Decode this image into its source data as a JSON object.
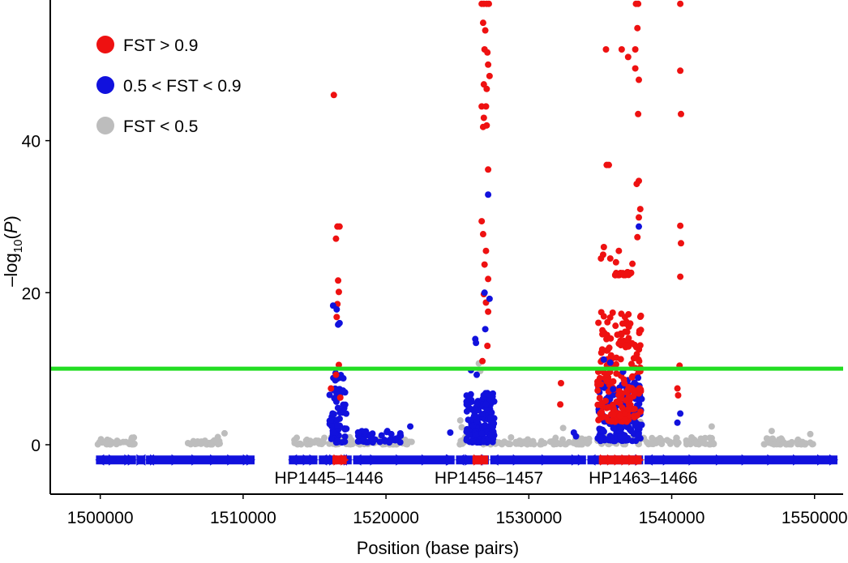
{
  "chart_data": {
    "type": "scatter",
    "title": "",
    "xlabel": "Position (base pairs)",
    "ylabel_parts": {
      "prefix": "–log",
      "sub": "10",
      "open": "(",
      "var": "P",
      "close": ")"
    },
    "xlim": [
      1496500,
      1552000
    ],
    "ylim": [
      -6.5,
      58.5
    ],
    "xticks": [
      1500000,
      1510000,
      1520000,
      1530000,
      1540000,
      1550000
    ],
    "yticks": [
      0,
      20,
      40
    ],
    "threshold": {
      "y": 10,
      "color": "#22dd22"
    },
    "legend": {
      "placement": "top-left",
      "entries": [
        {
          "label": "FST > 0.9",
          "color": "#ee1111"
        },
        {
          "label": "0.5 < FST < 0.9",
          "color": "#1111dd"
        },
        {
          "label": "FST < 0.5",
          "color": "#bdbdbd"
        }
      ]
    },
    "series": [
      {
        "name": "FST > 0.9",
        "color": "#ee1111",
        "points": [
          [
            1516350,
            46
          ],
          [
            1516500,
            27.1
          ],
          [
            1516600,
            28.7
          ],
          [
            1516750,
            28.7
          ],
          [
            1516650,
            21.6
          ],
          [
            1516700,
            20.1
          ],
          [
            1516600,
            18.5
          ],
          [
            1516550,
            16.8
          ],
          [
            1516700,
            10.5
          ],
          [
            1516500,
            9.2
          ],
          [
            1516150,
            7.4
          ],
          [
            1516800,
            6.2
          ],
          [
            1526700,
            58
          ],
          [
            1526850,
            58
          ],
          [
            1527050,
            58
          ],
          [
            1527200,
            58
          ],
          [
            1526800,
            55.5
          ],
          [
            1526950,
            54.5
          ],
          [
            1526900,
            52
          ],
          [
            1527100,
            51.6
          ],
          [
            1527150,
            50
          ],
          [
            1527250,
            48.5
          ],
          [
            1526850,
            47.4
          ],
          [
            1527050,
            46.8
          ],
          [
            1526700,
            44.5
          ],
          [
            1527000,
            44.5
          ],
          [
            1526850,
            43
          ],
          [
            1527050,
            42
          ],
          [
            1526800,
            41.8
          ],
          [
            1527150,
            36.2
          ],
          [
            1526700,
            29.4
          ],
          [
            1526800,
            27.7
          ],
          [
            1527000,
            25.5
          ],
          [
            1526900,
            23.7
          ],
          [
            1527150,
            21.8
          ],
          [
            1526850,
            19.8
          ],
          [
            1527000,
            18.7
          ],
          [
            1527150,
            17.5
          ],
          [
            1527100,
            13
          ],
          [
            1526750,
            11
          ],
          [
            1532250,
            8.1
          ],
          [
            1532200,
            5.3
          ],
          [
            1535400,
            52
          ],
          [
            1536500,
            52
          ],
          [
            1536950,
            51
          ],
          [
            1537450,
            52
          ],
          [
            1537500,
            58
          ],
          [
            1537650,
            58
          ],
          [
            1537600,
            54.8
          ],
          [
            1537450,
            49.5
          ],
          [
            1537700,
            48
          ],
          [
            1537650,
            43.5
          ],
          [
            1535450,
            36.8
          ],
          [
            1535600,
            36.8
          ],
          [
            1537700,
            34.7
          ],
          [
            1537550,
            34.3
          ],
          [
            1537800,
            31
          ],
          [
            1537700,
            29.9
          ],
          [
            1537600,
            27.3
          ],
          [
            1535250,
            26
          ],
          [
            1535200,
            25
          ],
          [
            1536300,
            25.5
          ],
          [
            1535050,
            24.5
          ],
          [
            1535700,
            24.5
          ],
          [
            1536100,
            24
          ],
          [
            1537250,
            23.8
          ],
          [
            1540600,
            58
          ],
          [
            1540600,
            49.2
          ],
          [
            1540650,
            43.5
          ],
          [
            1540600,
            28.8
          ],
          [
            1540650,
            26.5
          ],
          [
            1540600,
            22.1
          ],
          [
            1540550,
            10.4
          ],
          [
            1540400,
            7.4
          ],
          [
            1540450,
            6.5
          ]
        ]
      },
      {
        "name": "0.5 < FST < 0.9",
        "color": "#1111dd",
        "points": [
          [
            1516300,
            18.3
          ],
          [
            1516550,
            17.8
          ],
          [
            1516650,
            15.8
          ],
          [
            1516750,
            16
          ],
          [
            1527150,
            32.9
          ],
          [
            1526900,
            20
          ],
          [
            1527250,
            19.2
          ],
          [
            1526950,
            15.2
          ],
          [
            1526250,
            13.9
          ],
          [
            1526300,
            13.4
          ],
          [
            1525950,
            9.8
          ],
          [
            1526350,
            9.2
          ],
          [
            1537700,
            28.7
          ],
          [
            1535250,
            11.2
          ],
          [
            1535700,
            10.8
          ],
          [
            1536600,
            9.6
          ],
          [
            1537650,
            8.8
          ],
          [
            1535900,
            7.3
          ],
          [
            1521700,
            2.4
          ],
          [
            1524500,
            1.6
          ],
          [
            1526700,
            1.5
          ],
          [
            1533150,
            1.6
          ],
          [
            1533300,
            1.1
          ],
          [
            1540400,
            2.9
          ],
          [
            1540600,
            4.1
          ]
        ]
      }
    ],
    "gray_clusters": [
      [
        1499800,
        1502400
      ],
      [
        1506100,
        1508500
      ],
      [
        1513500,
        1517000
      ],
      [
        1517200,
        1522000
      ],
      [
        1525100,
        1525700
      ],
      [
        1526800,
        1534300
      ],
      [
        1534800,
        1537800
      ],
      [
        1537900,
        1538800
      ],
      [
        1538900,
        1543000
      ],
      [
        1546300,
        1550000
      ]
    ],
    "dense_clusters": [
      {
        "series": "0.5 < FST < 0.9",
        "x": [
          1516050,
          1517250
        ],
        "y": [
          0.3,
          9.5
        ],
        "n": 70
      },
      {
        "series": "0.5 < FST < 0.9",
        "x": [
          1525600,
          1527600
        ],
        "y": [
          0.3,
          6.8
        ],
        "n": 160
      },
      {
        "series": "0.5 < FST < 0.9",
        "x": [
          1534800,
          1537900
        ],
        "y": [
          0.5,
          8.5
        ],
        "n": 170
      },
      {
        "series": "FST > 0.9",
        "x": [
          1534800,
          1537900
        ],
        "y": [
          3.0,
          17.5
        ],
        "n": 190
      },
      {
        "series": "FST > 0.9",
        "x": [
          1536000,
          1537200
        ],
        "y": [
          22.3,
          22.7
        ],
        "n": 35
      },
      {
        "series": "0.5 < FST < 0.9",
        "x": [
          1518000,
          1521500
        ],
        "y": [
          0.3,
          1.8
        ],
        "n": 40
      }
    ],
    "gene_track": {
      "y": -2,
      "color_default": "#1111dd",
      "color_highlight": "#ee1111",
      "segments": [
        [
          1499700,
          1502500
        ],
        [
          1502600,
          1503100
        ],
        [
          1503200,
          1510800
        ],
        [
          1513200,
          1515200
        ],
        [
          1515300,
          1516600
        ],
        [
          1516700,
          1517600
        ],
        [
          1517700,
          1524800
        ],
        [
          1524900,
          1526100
        ],
        [
          1526200,
          1527200
        ],
        [
          1527300,
          1534000
        ],
        [
          1534100,
          1538000
        ],
        [
          1538100,
          1551600
        ]
      ],
      "highlights": [
        [
          1516250,
          1517250
        ],
        [
          1526050,
          1527150
        ],
        [
          1534900,
          1537900
        ]
      ],
      "arrow_positions": [
        1500700,
        1501800,
        1503600,
        1505100,
        1506500,
        1507800,
        1509000,
        1510100,
        1514300,
        1519000,
        1520800,
        1522600,
        1524300,
        1529000,
        1531000,
        1533100,
        1539500,
        1541300,
        1543200,
        1545000,
        1546800,
        1548600,
        1550300
      ]
    },
    "gene_labels": [
      {
        "x": 1516000,
        "text": "HP1445–1446"
      },
      {
        "x": 1527200,
        "text": "HP1456–1457"
      },
      {
        "x": 1538000,
        "text": "HP1463–1466"
      }
    ]
  }
}
